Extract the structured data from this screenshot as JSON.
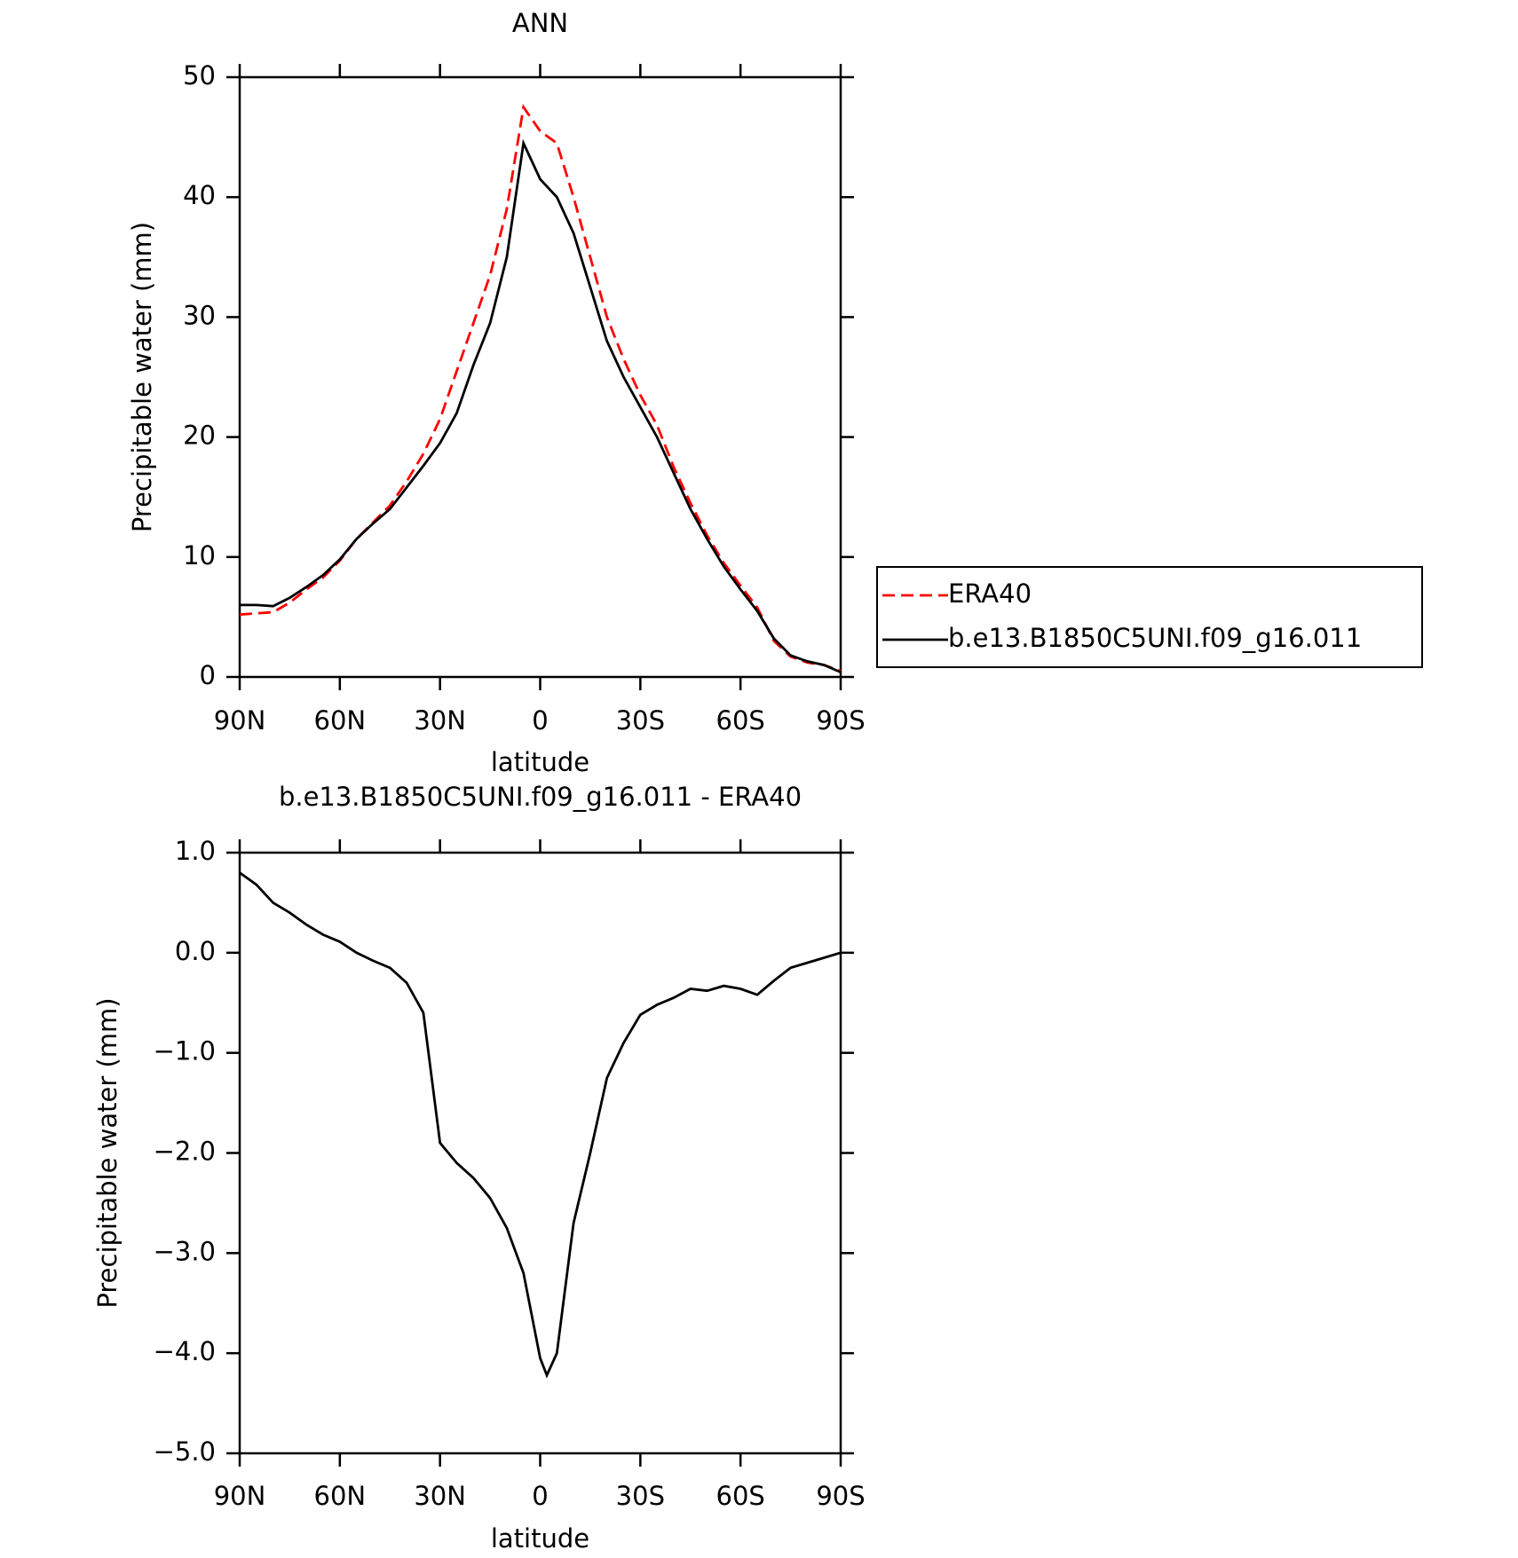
{
  "chart_data": [
    {
      "type": "line",
      "title": "ANN",
      "ylabel": "Precipitable water (mm)",
      "xlabel": "latitude",
      "x": [
        90,
        85,
        80,
        75,
        70,
        65,
        60,
        55,
        50,
        45,
        40,
        35,
        30,
        25,
        20,
        15,
        10,
        5,
        0,
        -5,
        -10,
        -15,
        -20,
        -25,
        -30,
        -35,
        -40,
        -45,
        -50,
        -55,
        -60,
        -65,
        -70,
        -75,
        -80,
        -85,
        -90
      ],
      "series": [
        {
          "name": "ERA40",
          "color": "#ff0000",
          "style": "dashed",
          "values": [
            5.2,
            5.3,
            5.4,
            6.2,
            7.3,
            8.3,
            9.7,
            11.5,
            12.9,
            14.3,
            16.3,
            18.6,
            21.5,
            25.5,
            29.5,
            33.5,
            39.0,
            47.5,
            45.5,
            44.5,
            40.0,
            35.0,
            30.0,
            26.5,
            23.5,
            21.0,
            17.5,
            14.5,
            11.8,
            9.5,
            7.6,
            5.8,
            3.0,
            1.7,
            1.2,
            1.0,
            0.5
          ]
        },
        {
          "name": "b.e13.B1850C5UNI.f09_g16.011",
          "color": "#000000",
          "style": "solid",
          "values": [
            6.0,
            6.0,
            5.9,
            6.6,
            7.5,
            8.5,
            9.8,
            11.5,
            12.8,
            14.0,
            15.8,
            17.6,
            19.5,
            22.0,
            26.0,
            29.5,
            35.0,
            44.5,
            41.5,
            40.0,
            37.0,
            32.5,
            28.0,
            25.0,
            22.5,
            20.0,
            17.0,
            14.0,
            11.5,
            9.2,
            7.3,
            5.5,
            3.2,
            1.8,
            1.3,
            1.0,
            0.4
          ]
        }
      ],
      "xlim": [
        90,
        -90
      ],
      "xticks": [
        {
          "value": 90,
          "label": "90N"
        },
        {
          "value": 60,
          "label": "60N"
        },
        {
          "value": 30,
          "label": "30N"
        },
        0,
        {
          "value": -30,
          "label": "30S"
        },
        {
          "value": -60,
          "label": "60S"
        },
        {
          "value": -90,
          "label": "90S"
        }
      ],
      "ylim": [
        0,
        50
      ],
      "yticks": [
        0,
        10,
        20,
        30,
        40,
        50
      ],
      "legend": "right"
    },
    {
      "type": "line",
      "title": "b.e13.B1850C5UNI.f09_g16.011 - ERA40",
      "ylabel": "Precipitable water (mm)",
      "xlabel": "latitude",
      "x": [
        90,
        85,
        80,
        75,
        70,
        65,
        60,
        55,
        50,
        45,
        40,
        35,
        30,
        25,
        20,
        15,
        10,
        5,
        0,
        -2,
        -5,
        -10,
        -15,
        -20,
        -25,
        -30,
        -35,
        -40,
        -45,
        -50,
        -55,
        -60,
        -65,
        -70,
        -75,
        -80,
        -85,
        -90
      ],
      "series": [
        {
          "color": "#000000",
          "style": "solid",
          "values": [
            0.8,
            0.68,
            0.5,
            0.4,
            0.28,
            0.18,
            0.11,
            0.0,
            -0.08,
            -0.15,
            -0.3,
            -0.6,
            -1.9,
            -2.1,
            -2.25,
            -2.45,
            -2.75,
            -3.2,
            -4.05,
            -4.22,
            -4.0,
            -2.7,
            -2.0,
            -1.25,
            -0.9,
            -0.62,
            -0.52,
            -0.45,
            -0.36,
            -0.38,
            -0.33,
            -0.36,
            -0.42,
            -0.28,
            -0.15,
            -0.1,
            -0.05,
            0.0
          ]
        }
      ],
      "xlim": [
        90,
        -90
      ],
      "xticks": [
        {
          "value": 90,
          "label": "90N"
        },
        {
          "value": 60,
          "label": "60N"
        },
        {
          "value": 30,
          "label": "30N"
        },
        0,
        {
          "value": -30,
          "label": "30S"
        },
        {
          "value": -60,
          "label": "60S"
        },
        {
          "value": -90,
          "label": "90S"
        }
      ],
      "ylim": [
        -5,
        1
      ],
      "yticks": [
        {
          "value": -5,
          "label": "−5.0"
        },
        {
          "value": -4,
          "label": "−4.0"
        },
        {
          "value": -3,
          "label": "−3.0"
        },
        {
          "value": -2,
          "label": "−2.0"
        },
        {
          "value": -1,
          "label": "−1.0"
        },
        {
          "value": 0,
          "label": "0.0"
        },
        {
          "value": 1,
          "label": "1.0"
        }
      ]
    }
  ]
}
